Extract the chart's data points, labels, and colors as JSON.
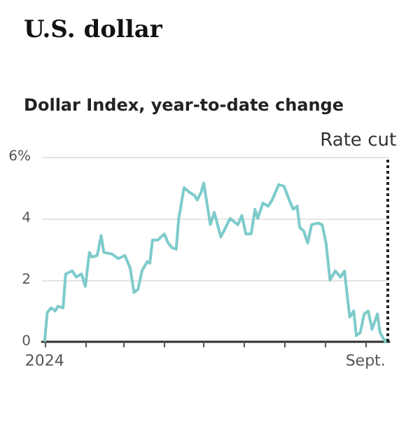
{
  "chart_data": {
    "type": "line",
    "title": "U.S. dollar",
    "subtitle": "Dollar Index, year-to-date change",
    "x": [
      "2024-01-01",
      "2024-01-03",
      "2024-01-06",
      "2024-01-09",
      "2024-01-11",
      "2024-01-15",
      "2024-01-17",
      "2024-01-22",
      "2024-01-25",
      "2024-01-29",
      "2024-02-01",
      "2024-02-04",
      "2024-02-06",
      "2024-02-10",
      "2024-02-13",
      "2024-02-15",
      "2024-02-21",
      "2024-02-26",
      "2024-03-02",
      "2024-03-06",
      "2024-03-09",
      "2024-03-12",
      "2024-03-15",
      "2024-03-19",
      "2024-03-21",
      "2024-03-23",
      "2024-03-27",
      "2024-04-01",
      "2024-04-04",
      "2024-04-07",
      "2024-04-10",
      "2024-04-12",
      "2024-04-16",
      "2024-04-20",
      "2024-04-24",
      "2024-04-26",
      "2024-04-29",
      "2024-05-01",
      "2024-05-06",
      "2024-05-09",
      "2024-05-14",
      "2024-05-21",
      "2024-05-27",
      "2024-05-30",
      "2024-06-02",
      "2024-06-06",
      "2024-06-09",
      "2024-06-11",
      "2024-06-15",
      "2024-06-19",
      "2024-06-22",
      "2024-06-27",
      "2024-07-01",
      "2024-07-05",
      "2024-07-08",
      "2024-07-11",
      "2024-07-13",
      "2024-07-16",
      "2024-07-19",
      "2024-07-22",
      "2024-07-27",
      "2024-07-30",
      "2024-08-02",
      "2024-08-05",
      "2024-08-09",
      "2024-08-13",
      "2024-08-16",
      "2024-08-17",
      "2024-08-20",
      "2024-08-23",
      "2024-08-25",
      "2024-08-28",
      "2024-08-31",
      "2024-09-03",
      "2024-09-06",
      "2024-09-10",
      "2024-09-12",
      "2024-09-16",
      "2024-09-18"
    ],
    "series": [
      {
        "color": "#7ecbcb",
        "values": [
          0,
          0.95,
          1.1,
          1.0,
          1.15,
          1.1,
          2.2,
          2.3,
          2.1,
          2.2,
          1.8,
          2.9,
          2.75,
          2.8,
          3.45,
          2.9,
          2.85,
          2.7,
          2.8,
          2.4,
          1.6,
          1.7,
          2.3,
          2.6,
          2.55,
          3.3,
          3.3,
          3.5,
          3.2,
          3.05,
          3.0,
          4.0,
          5.0,
          4.85,
          4.75,
          4.6,
          4.85,
          5.15,
          3.8,
          4.2,
          3.4,
          4.0,
          3.8,
          4.1,
          3.5,
          3.5,
          4.3,
          4.0,
          4.5,
          4.4,
          4.6,
          5.1,
          5.05,
          4.6,
          4.3,
          4.4,
          3.7,
          3.6,
          3.2,
          3.8,
          3.85,
          3.8,
          3.2,
          2.0,
          2.3,
          2.1,
          2.3,
          1.9,
          0.8,
          1.0,
          0.2,
          0.3,
          0.9,
          1.0,
          0.4,
          0.9,
          0.3,
          0.0,
          0.1
        ]
      }
    ],
    "xlim": [
      "2023-12-30",
      "2024-09-19"
    ],
    "xticks": [
      {
        "value": "2024-01-01",
        "label": "2024"
      },
      {
        "value": "2024-02-01",
        "label": null
      },
      {
        "value": "2024-03-01",
        "label": null
      },
      {
        "value": "2024-04-01",
        "label": null
      },
      {
        "value": "2024-05-01",
        "label": null
      },
      {
        "value": "2024-06-01",
        "label": null
      },
      {
        "value": "2024-07-01",
        "label": null
      },
      {
        "value": "2024-08-01",
        "label": null
      },
      {
        "value": "2024-09-01",
        "label": "Sept."
      }
    ],
    "ylim": [
      0,
      6
    ],
    "yticks": [
      0,
      2,
      4,
      {
        "value": 6,
        "label": "6%"
      }
    ],
    "grid": "y",
    "marker": "none",
    "line_style": "solid",
    "ref_lines": [
      {
        "axis": "x",
        "value": "2024-09-18",
        "label": "Rate cut",
        "color": "#222222",
        "line_style": "dotted"
      }
    ]
  }
}
